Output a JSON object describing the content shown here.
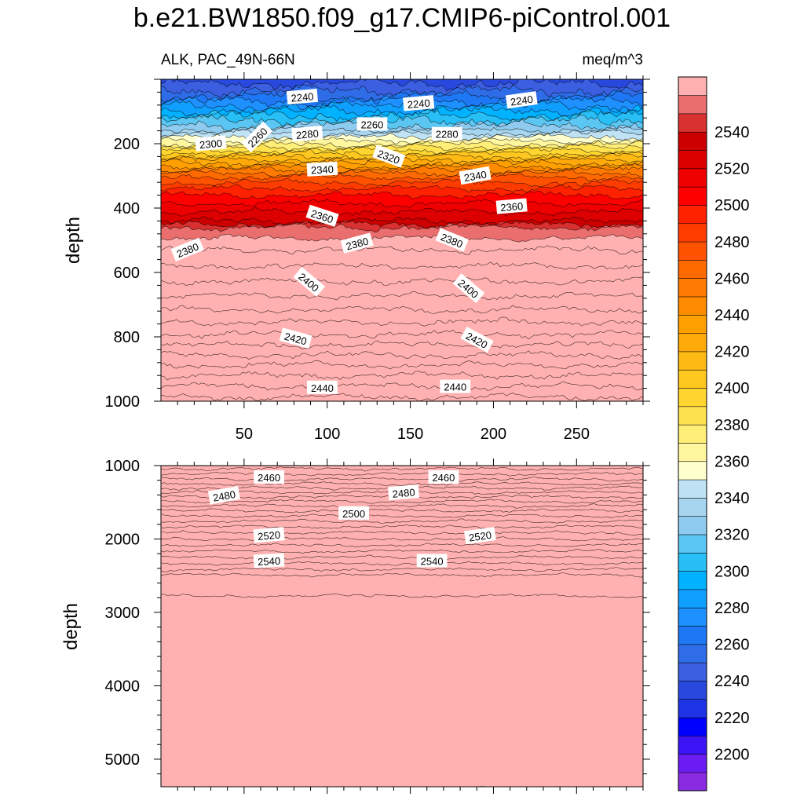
{
  "chart_data": {
    "type": "heatmap",
    "title": "b.e21.BW1850.f09_g17.CMIP6-piControl.001",
    "left_subtitle": "ALK, PAC_49N-66N",
    "right_subtitle": "meq/m^3",
    "x_ticks": [
      "50",
      "100",
      "150",
      "200",
      "250"
    ],
    "x_tick_values": [
      50,
      100,
      150,
      200,
      250
    ],
    "xlim": [
      0,
      290
    ],
    "colorbar": {
      "levels": [
        2190,
        2195,
        2200,
        2205,
        2210,
        2215,
        2220,
        2225,
        2230,
        2235,
        2240,
        2245,
        2250,
        2255,
        2260,
        2265,
        2270,
        2275,
        2280,
        2285,
        2290,
        2295,
        2300,
        2305,
        2310,
        2315,
        2320,
        2325,
        2330,
        2335,
        2340,
        2345,
        2350,
        2355,
        2360,
        2365,
        2370,
        2375,
        2380,
        2385,
        2390,
        2395,
        2400,
        2405,
        2410,
        2415,
        2420,
        2425,
        2430,
        2435,
        2440,
        2445,
        2450,
        2455,
        2460,
        2465,
        2470,
        2475,
        2480,
        2485,
        2490,
        2495,
        2500,
        2505,
        2510,
        2515,
        2520,
        2525,
        2530,
        2535,
        2540,
        2545,
        2550,
        2555,
        2560
      ],
      "tick_labels": [
        "2200",
        "2220",
        "2240",
        "2260",
        "2280",
        "2300",
        "2320",
        "2340",
        "2360",
        "2380",
        "2400",
        "2420",
        "2440",
        "2460",
        "2480",
        "2500",
        "2520",
        "2540"
      ],
      "tick_values": [
        2200,
        2220,
        2240,
        2260,
        2280,
        2300,
        2320,
        2340,
        2360,
        2380,
        2400,
        2420,
        2440,
        2460,
        2480,
        2500,
        2520,
        2540
      ],
      "colors": [
        "#8a2be2",
        "#6a1cf2",
        "#3c14f5",
        "#0000ff",
        "#1e34e6",
        "#2848de",
        "#3c5ee0",
        "#2f6de8",
        "#1e78f5",
        "#1e90ff",
        "#0fa0ff",
        "#00b2ff",
        "#27bff5",
        "#5cc6f2",
        "#8fcbef",
        "#a6d5f0",
        "#bfe3f5",
        "#ffffcc",
        "#fff6a0",
        "#ffee78",
        "#ffe250",
        "#ffd630",
        "#ffc820",
        "#ffb914",
        "#ffaa0a",
        "#ff9f00",
        "#ff8c00",
        "#ff7a00",
        "#ff6a00",
        "#ff5200",
        "#ff3c00",
        "#ff2200",
        "#ff0000",
        "#ee0000",
        "#dd0000",
        "#cc0000",
        "#d93030",
        "#ea6e6e",
        "#ffb0b0"
      ]
    },
    "panels": [
      {
        "name": "upper-panel",
        "ylabel": "depth",
        "y_ticks": [
          "200",
          "400",
          "600",
          "800",
          "1000"
        ],
        "y_tick_values": [
          200,
          400,
          600,
          800,
          1000
        ],
        "ylim": [
          0,
          1000
        ],
        "contour_labels": [
          {
            "text": "2240",
            "x": 85,
            "depth": 55,
            "rot": -5
          },
          {
            "text": "2240",
            "x": 155,
            "depth": 75,
            "rot": -5
          },
          {
            "text": "2240",
            "x": 217,
            "depth": 65,
            "rot": -8
          },
          {
            "text": "2260",
            "x": 58,
            "depth": 180,
            "rot": -45
          },
          {
            "text": "2260",
            "x": 127,
            "depth": 140,
            "rot": 0
          },
          {
            "text": "2280",
            "x": 88,
            "depth": 170,
            "rot": -5
          },
          {
            "text": "2280",
            "x": 172,
            "depth": 170,
            "rot": 0
          },
          {
            "text": "2300",
            "x": 30,
            "depth": 200,
            "rot": -5
          },
          {
            "text": "2320",
            "x": 137,
            "depth": 240,
            "rot": 20
          },
          {
            "text": "2340",
            "x": 97,
            "depth": 280,
            "rot": -3
          },
          {
            "text": "2340",
            "x": 189,
            "depth": 300,
            "rot": -10
          },
          {
            "text": "2360",
            "x": 97,
            "depth": 425,
            "rot": 18
          },
          {
            "text": "2360",
            "x": 211,
            "depth": 395,
            "rot": -5
          },
          {
            "text": "2380",
            "x": 16,
            "depth": 530,
            "rot": -22
          },
          {
            "text": "2380",
            "x": 118,
            "depth": 510,
            "rot": -15
          },
          {
            "text": "2380",
            "x": 175,
            "depth": 500,
            "rot": 22
          },
          {
            "text": "2400",
            "x": 89,
            "depth": 630,
            "rot": 40
          },
          {
            "text": "2400",
            "x": 185,
            "depth": 650,
            "rot": 40
          },
          {
            "text": "2420",
            "x": 81,
            "depth": 805,
            "rot": 15
          },
          {
            "text": "2420",
            "x": 190,
            "depth": 810,
            "rot": 28
          },
          {
            "text": "2440",
            "x": 97,
            "depth": 958,
            "rot": 0
          },
          {
            "text": "2440",
            "x": 177,
            "depth": 955,
            "rot": 0
          }
        ]
      },
      {
        "name": "lower-panel",
        "ylabel": "depth",
        "y_ticks": [
          "1000",
          "2000",
          "3000",
          "4000",
          "5000"
        ],
        "y_tick_values": [
          1000,
          2000,
          3000,
          4000,
          5000
        ],
        "ylim": [
          1000,
          5375
        ],
        "contour_labels": [
          {
            "text": "2460",
            "x": 65,
            "depth": 1160,
            "rot": 0
          },
          {
            "text": "2460",
            "x": 170,
            "depth": 1160,
            "rot": 0
          },
          {
            "text": "2480",
            "x": 38,
            "depth": 1410,
            "rot": -10
          },
          {
            "text": "2480",
            "x": 146,
            "depth": 1370,
            "rot": -5
          },
          {
            "text": "2500",
            "x": 116,
            "depth": 1650,
            "rot": 0
          },
          {
            "text": "2520",
            "x": 65,
            "depth": 1950,
            "rot": -5
          },
          {
            "text": "2520",
            "x": 192,
            "depth": 1960,
            "rot": -8
          },
          {
            "text": "2540",
            "x": 65,
            "depth": 2300,
            "rot": -3
          },
          {
            "text": "2540",
            "x": 163,
            "depth": 2300,
            "rot": 0
          }
        ]
      }
    ]
  }
}
